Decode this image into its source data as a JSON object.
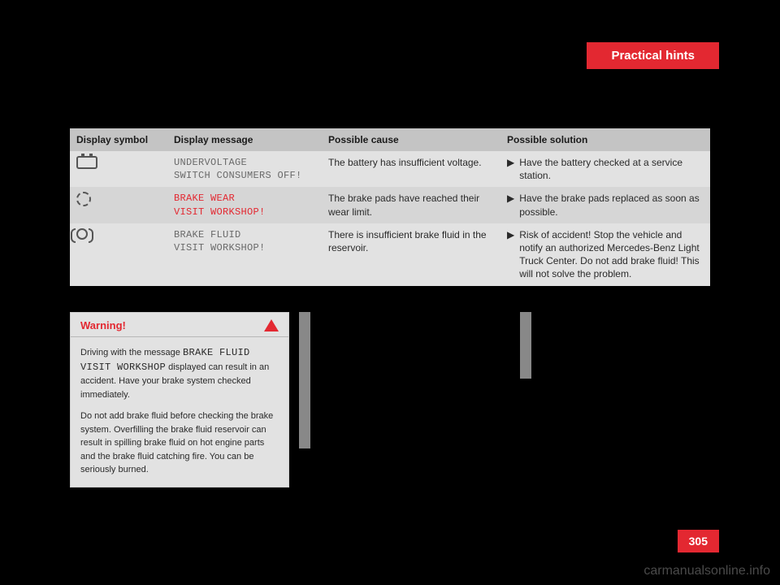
{
  "header": {
    "title": "Practical hints"
  },
  "table": {
    "columns": [
      "Display symbol",
      "Display message",
      "Possible cause",
      "Possible solution"
    ],
    "rows": [
      {
        "msg_l1": "UNDERVOLTAGE",
        "msg_l2": "SWITCH CONSUMERS OFF!",
        "msg_color": "gray",
        "cause": "The battery has insufficient voltage.",
        "solution": "Have the battery checked at a ser­vice station."
      },
      {
        "msg_l1": "BRAKE WEAR",
        "msg_l2": "VISIT WORKSHOP!",
        "msg_color": "red",
        "cause": "The brake pads have reached their wear limit.",
        "solution": "Have the brake pads replaced as soon as possible."
      },
      {
        "msg_l1": "BRAKE FLUID",
        "msg_l2": "VISIT WORKSHOP!",
        "msg_color": "gray",
        "cause": "There is insufficient brake fluid in the reservoir.",
        "solution": "Risk of accident! Stop the vehicle and notify an authorized Mercedes-Benz Light Truck Center. Do not add brake fluid! This will not solve the problem."
      }
    ]
  },
  "warning": {
    "title": "Warning!",
    "p1_a": "Driving with the message ",
    "p1_code": "BRAKE FLUID VISIT WORKSHOP",
    "p1_b": " displayed can result in an accident. Have your brake system checked immediately.",
    "p2": "Do not add brake fluid before checking the brake system. Overfilling the brake fluid res­ervoir can result in spilling brake fluid on hot engine parts and the brake fluid catching fire. You can be seriously burned."
  },
  "page_number": "305",
  "watermark": "carmanualsonline.info",
  "colors": {
    "accent": "#e32831",
    "bg": "#000000"
  }
}
